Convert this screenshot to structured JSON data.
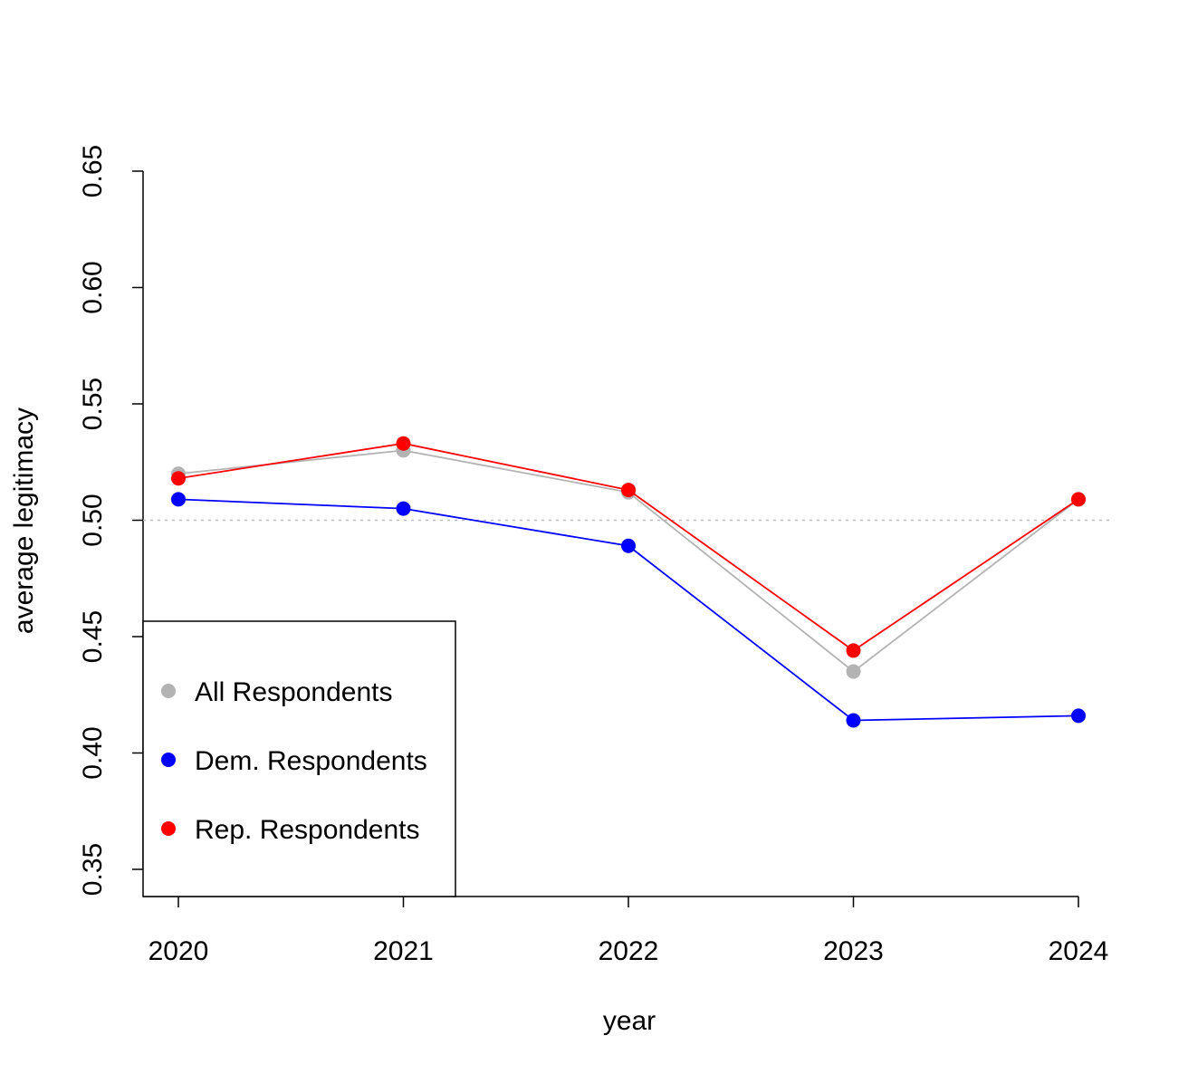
{
  "chart_data": {
    "type": "line",
    "title": "",
    "xlabel": "year",
    "ylabel": "average legitimacy",
    "categories": [
      "2020",
      "2021",
      "2022",
      "2023",
      "2024"
    ],
    "y_ticks": [
      "0.35",
      "0.40",
      "0.45",
      "0.50",
      "0.55",
      "0.60",
      "0.65"
    ],
    "ylim": [
      0.35,
      0.65
    ],
    "reference_line": {
      "y": 0.5,
      "style": "dotted",
      "color": "#bebebe"
    },
    "series": [
      {
        "name": "All Respondents",
        "color": "#b3b3b3",
        "values": [
          0.52,
          0.53,
          0.512,
          0.435,
          0.509
        ]
      },
      {
        "name": "Dem. Respondents",
        "color": "#0000ff",
        "values": [
          0.509,
          0.505,
          0.489,
          0.414,
          0.416
        ]
      },
      {
        "name": "Rep. Respondents",
        "color": "#ff0000",
        "values": [
          0.518,
          0.533,
          0.513,
          0.444,
          0.509
        ]
      }
    ],
    "legend": {
      "position": "bottom-left",
      "entries": [
        "All Respondents",
        "Dem. Respondents",
        "Rep. Respondents"
      ]
    },
    "grid": false
  }
}
